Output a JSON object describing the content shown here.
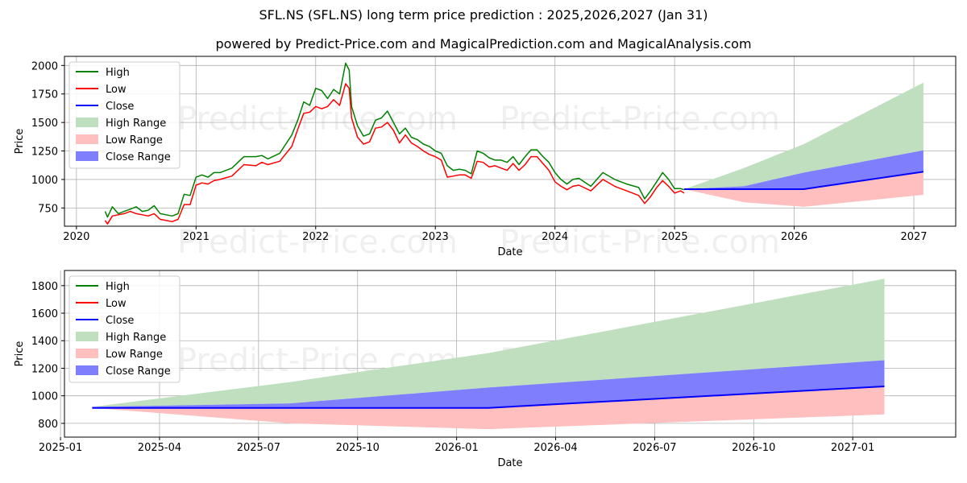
{
  "page": {
    "title": "SFL.NS (SFL.NS) long term price prediction : 2025,2026,2027 (Jan 31)",
    "subtitle": "powered by Predict-Price.com and MagicalPrediction.com and MagicalAnalysis.com",
    "watermark": "Predict-Price.com"
  },
  "colors": {
    "high": "#008000",
    "low": "#ff0000",
    "close": "#0000ff",
    "high_range": "#bfdfbf",
    "low_range": "#ffbfbf",
    "close_range": "#7f7ffe"
  },
  "chart_data": [
    {
      "type": "line",
      "xlabel": "Date",
      "ylabel": "Price",
      "x_unit": "year",
      "xlim": [
        2019.9,
        2027.35
      ],
      "ylim": [
        590,
        2080
      ],
      "xticks": [
        2020,
        2021,
        2022,
        2023,
        2024,
        2025,
        2026,
        2027
      ],
      "xtick_labels": [
        "2020",
        "2021",
        "2022",
        "2023",
        "2024",
        "2025",
        "2026",
        "2027"
      ],
      "yticks": [
        750,
        1000,
        1250,
        1500,
        1750,
        2000
      ],
      "grid": true,
      "legend": {
        "position": "top-left",
        "entries": [
          "High",
          "Low",
          "Close",
          "High Range",
          "Low Range",
          "Close Range"
        ]
      },
      "history": {
        "x": [
          2020.24,
          2020.26,
          2020.3,
          2020.35,
          2020.4,
          2020.45,
          2020.5,
          2020.55,
          2020.6,
          2020.65,
          2020.7,
          2020.75,
          2020.8,
          2020.85,
          2020.9,
          2020.95,
          2021.0,
          2021.05,
          2021.1,
          2021.15,
          2021.2,
          2021.3,
          2021.4,
          2021.5,
          2021.55,
          2021.6,
          2021.7,
          2021.8,
          2021.85,
          2021.9,
          2021.95,
          2022.0,
          2022.05,
          2022.1,
          2022.15,
          2022.2,
          2022.25,
          2022.28,
          2022.3,
          2022.35,
          2022.4,
          2022.45,
          2022.5,
          2022.55,
          2022.6,
          2022.65,
          2022.7,
          2022.75,
          2022.8,
          2022.85,
          2022.9,
          2022.95,
          2023.0,
          2023.05,
          2023.1,
          2023.15,
          2023.2,
          2023.25,
          2023.3,
          2023.35,
          2023.4,
          2023.45,
          2023.5,
          2023.55,
          2023.6,
          2023.65,
          2023.7,
          2023.75,
          2023.8,
          2023.85,
          2023.9,
          2023.95,
          2024.0,
          2024.05,
          2024.1,
          2024.15,
          2024.2,
          2024.3,
          2024.4,
          2024.5,
          2024.55,
          2024.6,
          2024.7,
          2024.75,
          2024.8,
          2024.85,
          2024.9,
          2024.95,
          2025.0,
          2025.05,
          2025.08
        ],
        "high": [
          720,
          670,
          760,
          700,
          720,
          740,
          760,
          720,
          730,
          770,
          700,
          690,
          680,
          700,
          870,
          860,
          1020,
          1040,
          1020,
          1060,
          1060,
          1100,
          1200,
          1200,
          1210,
          1180,
          1230,
          1390,
          1520,
          1680,
          1650,
          1800,
          1780,
          1710,
          1790,
          1750,
          2020,
          1960,
          1640,
          1470,
          1380,
          1400,
          1520,
          1540,
          1600,
          1500,
          1400,
          1450,
          1370,
          1350,
          1310,
          1290,
          1250,
          1230,
          1120,
          1080,
          1090,
          1080,
          1050,
          1250,
          1230,
          1190,
          1170,
          1170,
          1150,
          1200,
          1130,
          1200,
          1260,
          1260,
          1200,
          1150,
          1060,
          1000,
          960,
          1000,
          1010,
          940,
          1060,
          1000,
          980,
          960,
          930,
          830,
          900,
          980,
          1060,
          1000,
          920,
          920,
          910
        ],
        "low": [
          640,
          610,
          680,
          690,
          700,
          720,
          700,
          690,
          680,
          700,
          650,
          640,
          630,
          650,
          780,
          780,
          950,
          970,
          960,
          990,
          1000,
          1030,
          1130,
          1120,
          1150,
          1130,
          1160,
          1290,
          1440,
          1580,
          1590,
          1640,
          1620,
          1640,
          1700,
          1650,
          1840,
          1800,
          1540,
          1370,
          1310,
          1330,
          1450,
          1460,
          1500,
          1430,
          1320,
          1390,
          1320,
          1290,
          1250,
          1220,
          1200,
          1170,
          1020,
          1030,
          1040,
          1040,
          1010,
          1160,
          1150,
          1110,
          1120,
          1100,
          1080,
          1140,
          1080,
          1130,
          1200,
          1200,
          1140,
          1080,
          980,
          940,
          910,
          940,
          950,
          900,
          1000,
          940,
          920,
          900,
          860,
          790,
          850,
          930,
          990,
          940,
          880,
          900,
          880
        ]
      },
      "forecast": {
        "x": [
          2025.08,
          2025.58,
          2026.08,
          2027.08
        ],
        "close": [
          915,
          915,
          915,
          1068
        ],
        "high_range_upper": [
          915,
          1100,
          1310,
          1850
        ],
        "close_range_upper": [
          915,
          940,
          1060,
          1255
        ],
        "close_range_lower": [
          915,
          915,
          915,
          1068
        ],
        "low_range_lower": [
          915,
          800,
          760,
          865
        ]
      }
    },
    {
      "type": "line",
      "xlabel": "Date",
      "ylabel": "Price",
      "x_unit": "year",
      "xlim": [
        2025.01,
        2027.26
      ],
      "ylim": [
        700,
        1910
      ],
      "xticks": [
        2025.0,
        2025.25,
        2025.5,
        2025.75,
        2026.0,
        2026.25,
        2026.5,
        2026.75,
        2027.0
      ],
      "xtick_labels": [
        "2025-01",
        "2025-04",
        "2025-07",
        "2025-10",
        "2026-01",
        "2026-04",
        "2026-07",
        "2026-10",
        "2027-01"
      ],
      "yticks": [
        800,
        1000,
        1200,
        1400,
        1600,
        1800
      ],
      "grid": true,
      "legend": {
        "position": "top-left",
        "entries": [
          "High",
          "Low",
          "Close",
          "High Range",
          "Low Range",
          "Close Range"
        ]
      },
      "forecast": {
        "x": [
          2025.08,
          2025.58,
          2026.08,
          2027.08
        ],
        "close": [
          912,
          912,
          912,
          1068
        ],
        "high_range_upper": [
          920,
          1100,
          1310,
          1850
        ],
        "close_range_upper": [
          920,
          945,
          1060,
          1258
        ],
        "close_range_lower": [
          912,
          912,
          912,
          1068
        ],
        "low_range_lower": [
          912,
          800,
          758,
          865
        ]
      }
    }
  ]
}
